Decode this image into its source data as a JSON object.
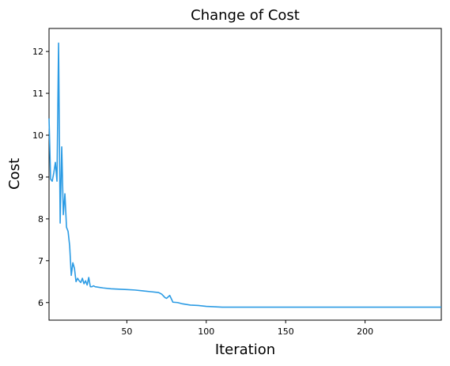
{
  "chart_data": {
    "type": "line",
    "title": "Change of Cost",
    "xlabel": "Iteration",
    "ylabel": "Cost",
    "xlim": [
      1,
      248
    ],
    "ylim": [
      5.58,
      12.55
    ],
    "x_ticks": [
      50,
      100,
      150,
      200
    ],
    "y_ticks": [
      6,
      7,
      8,
      9,
      10,
      11,
      12
    ],
    "grid": false,
    "legend": "none",
    "line_color": "#2b9be4",
    "series": [
      {
        "points": [
          [
            1,
            10.4
          ],
          [
            2,
            8.95
          ],
          [
            3,
            8.9
          ],
          [
            4,
            9.1
          ],
          [
            5,
            9.35
          ],
          [
            6,
            8.9
          ],
          [
            7,
            12.2
          ],
          [
            8,
            7.9
          ],
          [
            9,
            9.72
          ],
          [
            10,
            8.1
          ],
          [
            11,
            8.6
          ],
          [
            12,
            7.8
          ],
          [
            13,
            7.7
          ],
          [
            14,
            7.35
          ],
          [
            15,
            6.65
          ],
          [
            16,
            6.95
          ],
          [
            17,
            6.82
          ],
          [
            18,
            6.5
          ],
          [
            19,
            6.58
          ],
          [
            20,
            6.52
          ],
          [
            21,
            6.48
          ],
          [
            22,
            6.58
          ],
          [
            23,
            6.45
          ],
          [
            24,
            6.52
          ],
          [
            25,
            6.42
          ],
          [
            26,
            6.6
          ],
          [
            27,
            6.38
          ],
          [
            28,
            6.38
          ],
          [
            29,
            6.4
          ],
          [
            30,
            6.38
          ],
          [
            35,
            6.35
          ],
          [
            40,
            6.33
          ],
          [
            45,
            6.32
          ],
          [
            50,
            6.31
          ],
          [
            55,
            6.3
          ],
          [
            60,
            6.28
          ],
          [
            65,
            6.26
          ],
          [
            70,
            6.24
          ],
          [
            72,
            6.2
          ],
          [
            74,
            6.12
          ],
          [
            75,
            6.1
          ],
          [
            77,
            6.17
          ],
          [
            79,
            6.01
          ],
          [
            82,
            6.0
          ],
          [
            85,
            5.97
          ],
          [
            90,
            5.94
          ],
          [
            95,
            5.93
          ],
          [
            100,
            5.91
          ],
          [
            105,
            5.9
          ],
          [
            110,
            5.89
          ],
          [
            120,
            5.89
          ],
          [
            150,
            5.89
          ],
          [
            200,
            5.89
          ],
          [
            248,
            5.89
          ]
        ]
      }
    ]
  }
}
